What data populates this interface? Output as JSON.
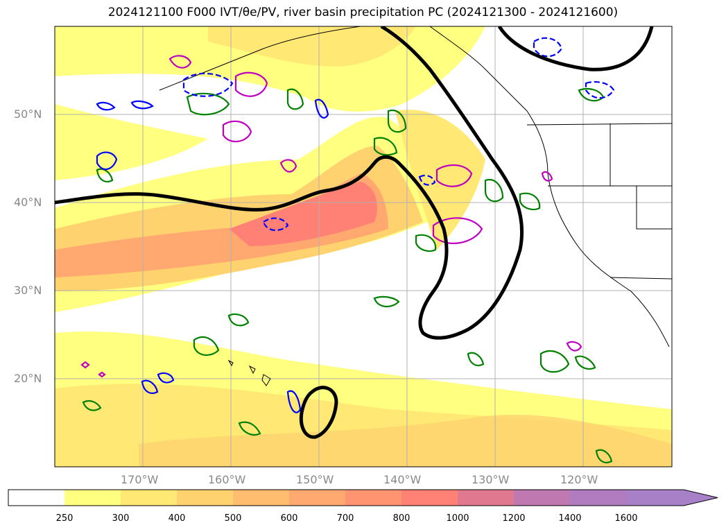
{
  "figure": {
    "title": "2024121100 F000 IVT/θe/PV, river basin precipitation PC (2024121300 - 2024121600)"
  },
  "map": {
    "lon_labels": [
      "170°W",
      "160°W",
      "150°W",
      "140°W",
      "130°W",
      "120°W"
    ],
    "lat_labels": [
      "50°N",
      "40°N",
      "30°N",
      "20°N"
    ],
    "lon_range": [
      -180,
      -110
    ],
    "lat_range": [
      10,
      60
    ]
  },
  "colorbar": {
    "ticks": [
      "250",
      "300",
      "400",
      "500",
      "600",
      "700",
      "800",
      "1000",
      "1200",
      "1400",
      "1600"
    ],
    "colors": [
      "#ffffff",
      "#ffff80",
      "#ffe873",
      "#ffd270",
      "#ffbd70",
      "#ffa870",
      "#ff9470",
      "#ff8075",
      "#e07890",
      "#c078b0",
      "#a880c8"
    ],
    "extend": "max"
  }
}
